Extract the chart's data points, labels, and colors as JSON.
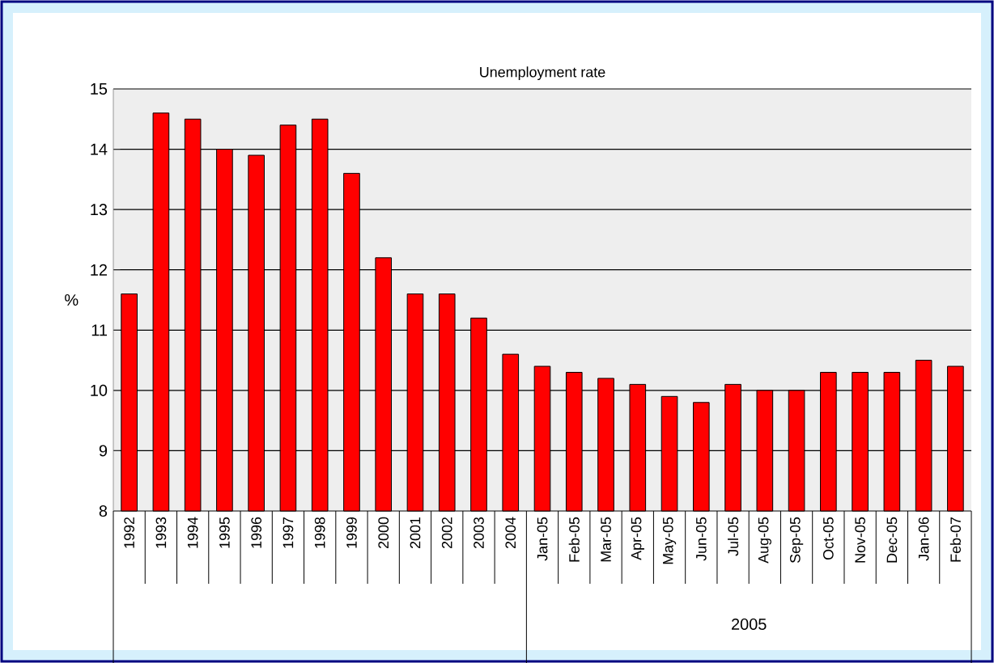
{
  "chart_data": {
    "type": "bar",
    "title": "Unemployment rate",
    "ylabel": "%",
    "categories": [
      "1992",
      "1993",
      "1994",
      "1995",
      "1996",
      "1997",
      "1998",
      "1999",
      "2000",
      "2001",
      "2002",
      "2003",
      "2004",
      "Jan-05",
      "Feb-05",
      "Mar-05",
      "Apr-05",
      "May-05",
      "Jun-05",
      "Jul-05",
      "Aug-05",
      "Sep-05",
      "Oct-05",
      "Nov-05",
      "Dec-05",
      "Jan-06",
      "Feb-07"
    ],
    "values": [
      11.6,
      14.6,
      14.5,
      14.0,
      13.9,
      14.4,
      14.5,
      13.6,
      12.2,
      11.6,
      11.6,
      11.2,
      10.6,
      10.4,
      10.3,
      10.2,
      10.1,
      9.9,
      9.8,
      10.1,
      10.0,
      10.0,
      10.3,
      10.3,
      10.3,
      10.5,
      10.4
    ],
    "color": "#ff0000",
    "ylim": [
      8,
      15
    ],
    "yticks": [
      8,
      9,
      10,
      11,
      12,
      13,
      14,
      15
    ],
    "grid": "y",
    "annotations": [
      "2005"
    ]
  }
}
